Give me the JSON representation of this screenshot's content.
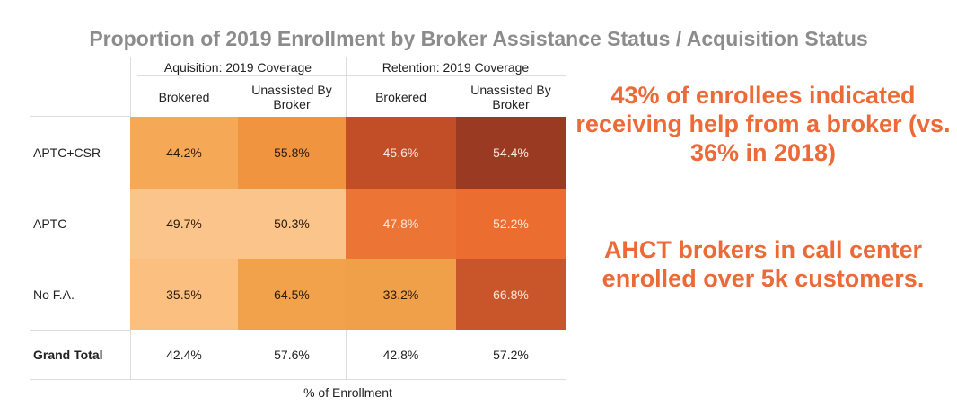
{
  "title": "Proportion of 2019 Enrollment by Broker Assistance Status / Acquisition Status",
  "chart_data": {
    "type": "heatmap",
    "column_groups": [
      "Aquisition: 2019 Coverage",
      "Retention: 2019 Coverage"
    ],
    "columns": [
      "Brokered",
      "Unassisted By Broker",
      "Brokered",
      "Unassisted By Broker"
    ],
    "rows": [
      "APTC+CSR",
      "APTC",
      "No F.A."
    ],
    "values": [
      [
        "44.2%",
        "55.8%",
        "45.6%",
        "54.4%"
      ],
      [
        "49.7%",
        "50.3%",
        "47.8%",
        "52.2%"
      ],
      [
        "35.5%",
        "64.5%",
        "33.2%",
        "66.8%"
      ]
    ],
    "cell_colors": [
      [
        "#f5a855",
        "#f19440",
        "#c24e28",
        "#9b3a22"
      ],
      [
        "#fbc48a",
        "#fbc48a",
        "#ec7434",
        "#ec6d30"
      ],
      [
        "#fbc080",
        "#f2a24b",
        "#f1a04a",
        "#c9552b"
      ]
    ],
    "grand_total_label": "Grand Total",
    "grand_total": [
      "42.4%",
      "57.6%",
      "42.8%",
      "57.2%"
    ],
    "xlabel": "% of Enrollment"
  },
  "notes": [
    "43% of enrollees indicated receiving help from a broker (vs. 36% in 2018)",
    "AHCT brokers in call center enrolled over 5k customers."
  ],
  "accent": "#ec6a38"
}
